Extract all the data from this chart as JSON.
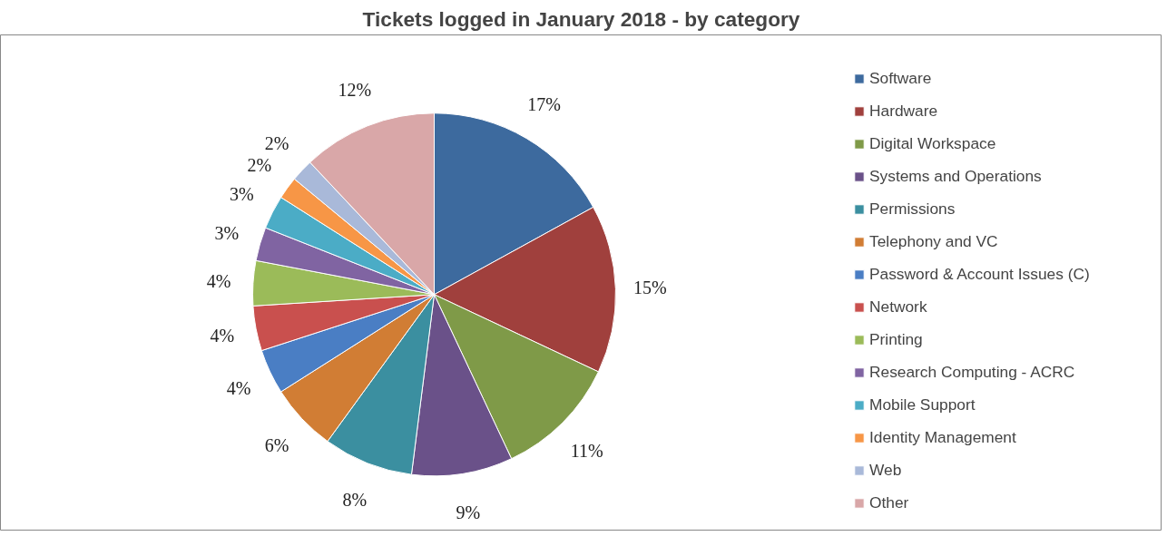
{
  "chart_data": {
    "type": "pie",
    "title": "Tickets logged in January 2018 - by category",
    "categories": [
      "Software",
      "Hardware",
      "Digital Workspace",
      "Systems and Operations",
      "Permissions",
      "Telephony and VC",
      "Password & Account Issues (C)",
      "Network",
      "Printing",
      "Research Computing - ACRC",
      "Mobile Support",
      "Identity Management",
      "Web",
      "Other"
    ],
    "values": [
      17,
      15,
      11,
      9,
      8,
      6,
      4,
      4,
      4,
      3,
      3,
      2,
      2,
      12
    ],
    "value_labels": [
      "17%",
      "15%",
      "11%",
      "9%",
      "8%",
      "6%",
      "4%",
      "4%",
      "4%",
      "3%",
      "3%",
      "2%",
      "2%",
      "12%"
    ],
    "colors": [
      "#3d6a9e",
      "#a0403d",
      "#7f9a48",
      "#6a5189",
      "#3b8fa0",
      "#d17d34",
      "#4a7ec4",
      "#c9504e",
      "#9bbb59",
      "#8064a2",
      "#4bacc6",
      "#f79646",
      "#a9b9d9",
      "#d9a7a8"
    ],
    "legend": "right"
  }
}
